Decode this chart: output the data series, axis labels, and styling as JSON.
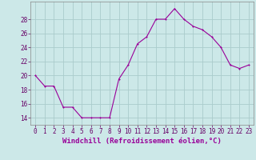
{
  "x": [
    0,
    1,
    2,
    3,
    4,
    5,
    6,
    7,
    8,
    9,
    10,
    11,
    12,
    13,
    14,
    15,
    16,
    17,
    18,
    19,
    20,
    21,
    22,
    23
  ],
  "y": [
    20,
    18.5,
    18.5,
    15.5,
    15.5,
    14,
    14,
    14,
    14,
    19.5,
    21.5,
    24.5,
    25.5,
    28,
    28,
    29.5,
    28,
    27,
    26.5,
    25.5,
    24,
    21.5,
    21,
    21.5
  ],
  "line_color": "#990099",
  "marker_color": "#990099",
  "bg_color": "#cce8e8",
  "grid_color": "#aacccc",
  "xlabel": "Windchill (Refroidissement éolien,°C)",
  "xlabel_color": "#990099",
  "yticks": [
    14,
    16,
    18,
    20,
    22,
    24,
    26,
    28
  ],
  "xticks": [
    0,
    1,
    2,
    3,
    4,
    5,
    6,
    7,
    8,
    9,
    10,
    11,
    12,
    13,
    14,
    15,
    16,
    17,
    18,
    19,
    20,
    21,
    22,
    23
  ],
  "ylim": [
    13.0,
    30.5
  ],
  "xlim": [
    -0.5,
    23.5
  ],
  "tick_fontsize": 5.5,
  "xlabel_fontsize": 6.5,
  "linewidth": 0.8,
  "markersize": 2.0
}
